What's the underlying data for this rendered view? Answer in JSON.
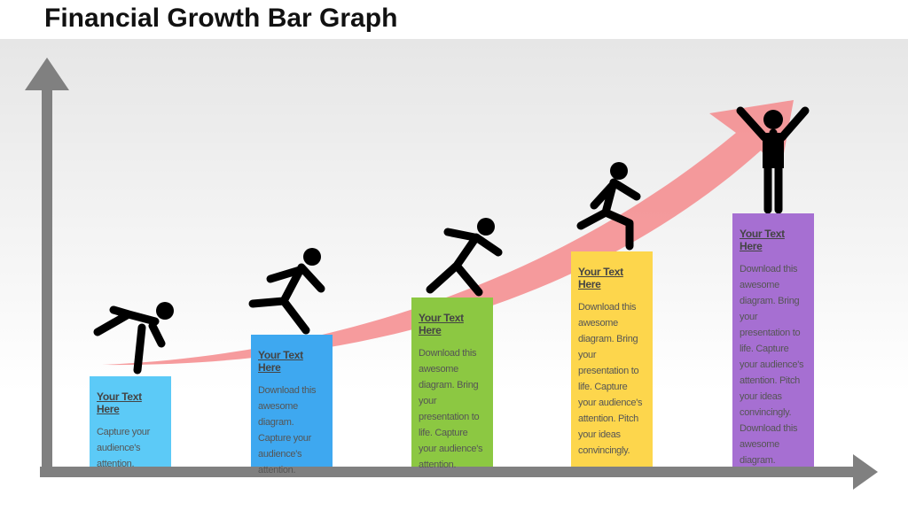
{
  "title": "Financial Growth Bar Graph",
  "steps": [
    {
      "heading": "Your Text Here",
      "lines": [
        "Capture your",
        "audience's",
        "attention."
      ]
    },
    {
      "heading": "Your Text Here",
      "lines": [
        "Download this",
        "awesome",
        "diagram.",
        "Capture your",
        "audience's",
        "attention."
      ]
    },
    {
      "heading": "Your Text Here",
      "lines": [
        "Download this",
        "awesome",
        "diagram. Bring",
        "your",
        "presentation to",
        "life. Capture",
        "your audience's",
        "attention."
      ]
    },
    {
      "heading": "Your Text Here",
      "lines": [
        "Download this",
        "awesome",
        "diagram. Bring",
        "your",
        "presentation to",
        "life. Capture",
        "your audience's",
        "attention. Pitch",
        "your ideas",
        "convincingly."
      ]
    },
    {
      "heading": "Your Text Here",
      "lines": [
        "Download this",
        "awesome",
        "diagram. Bring",
        "your",
        "presentation to",
        "life. Capture",
        "your audience's",
        "attention. Pitch",
        "your ideas",
        "convincingly.",
        "Download this",
        "awesome",
        "diagram."
      ]
    }
  ]
}
